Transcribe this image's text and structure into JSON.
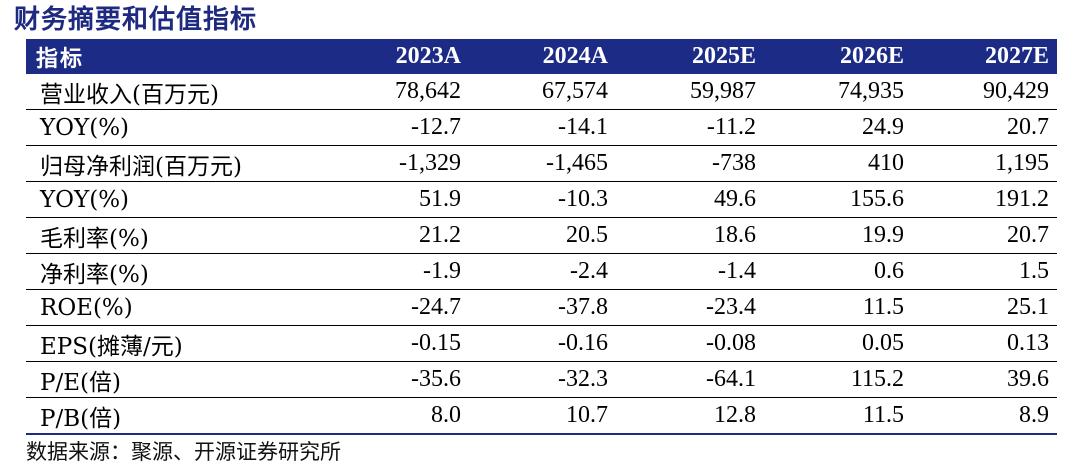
{
  "title": "财务摘要和估值指标",
  "header": [
    "指标",
    "2023A",
    "2024A",
    "2025E",
    "2026E",
    "2027E"
  ],
  "rows": [
    {
      "label": "营业收入(百万元)",
      "values": [
        "78,642",
        "67,574",
        "59,987",
        "74,935",
        "90,429"
      ]
    },
    {
      "label": "YOY(%)",
      "values": [
        "-12.7",
        "-14.1",
        "-11.2",
        "24.9",
        "20.7"
      ]
    },
    {
      "label": "归母净利润(百万元)",
      "values": [
        "-1,329",
        "-1,465",
        "-738",
        "410",
        "1,195"
      ]
    },
    {
      "label": "YOY(%)",
      "values": [
        "51.9",
        "-10.3",
        "49.6",
        "155.6",
        "191.2"
      ]
    },
    {
      "label": "毛利率(%)",
      "values": [
        "21.2",
        "20.5",
        "18.6",
        "19.9",
        "20.7"
      ]
    },
    {
      "label": "净利率(%)",
      "values": [
        "-1.9",
        "-2.4",
        "-1.4",
        "0.6",
        "1.5"
      ]
    },
    {
      "label": "ROE(%)",
      "values": [
        "-24.7",
        "-37.8",
        "-23.4",
        "11.5",
        "25.1"
      ]
    },
    {
      "label": "EPS(摊薄/元)",
      "values": [
        "-0.15",
        "-0.16",
        "-0.08",
        "0.05",
        "0.13"
      ]
    },
    {
      "label": "P/E(倍)",
      "values": [
        "-35.6",
        "-32.3",
        "-64.1",
        "115.2",
        "39.6"
      ]
    },
    {
      "label": "P/B(倍)",
      "values": [
        "8.0",
        "10.7",
        "12.8",
        "11.5",
        "8.9"
      ]
    }
  ],
  "source": "数据来源：聚源、开源证券研究所",
  "colors": {
    "header_bg": "#1c2b86",
    "title": "#1d2a7f"
  }
}
